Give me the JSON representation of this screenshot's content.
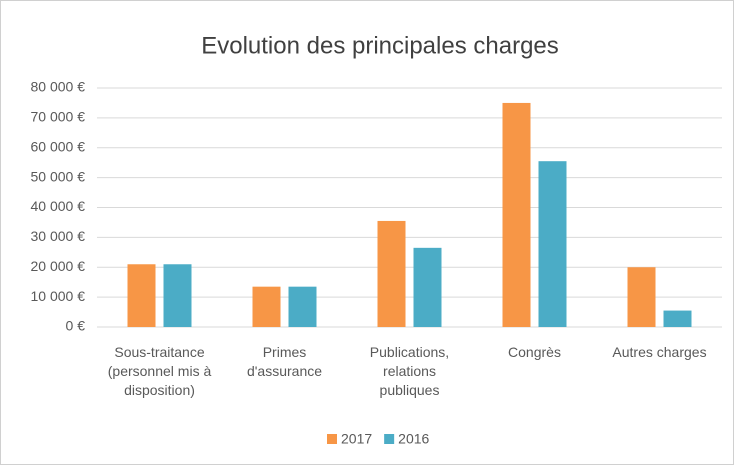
{
  "chart_data": {
    "type": "bar",
    "title": "Evolution des principales charges",
    "categories": [
      "Sous-traitance (personnel mis à disposition)",
      "Primes d'assurance",
      "Publications, relations publiques",
      "Congrès",
      "Autres charges"
    ],
    "series": [
      {
        "name": "2017",
        "color": "#f79646",
        "values": [
          21000,
          13500,
          35500,
          75000,
          20000
        ]
      },
      {
        "name": "2016",
        "color": "#4bacc6",
        "values": [
          21000,
          13500,
          26500,
          55500,
          5500
        ]
      }
    ],
    "ylim": [
      0,
      80000
    ],
    "yticks": [
      {
        "value": 0,
        "label": "0 €"
      },
      {
        "value": 10000,
        "label": "10 000 €"
      },
      {
        "value": 20000,
        "label": "20 000 €"
      },
      {
        "value": 30000,
        "label": "30 000 €"
      },
      {
        "value": 40000,
        "label": "40 000 €"
      },
      {
        "value": 50000,
        "label": "50 000 €"
      },
      {
        "value": 60000,
        "label": "60 000 €"
      },
      {
        "value": 70000,
        "label": "70 000 €"
      },
      {
        "value": 80000,
        "label": "80 000 €"
      }
    ],
    "grid": true,
    "legend": "bottom"
  }
}
